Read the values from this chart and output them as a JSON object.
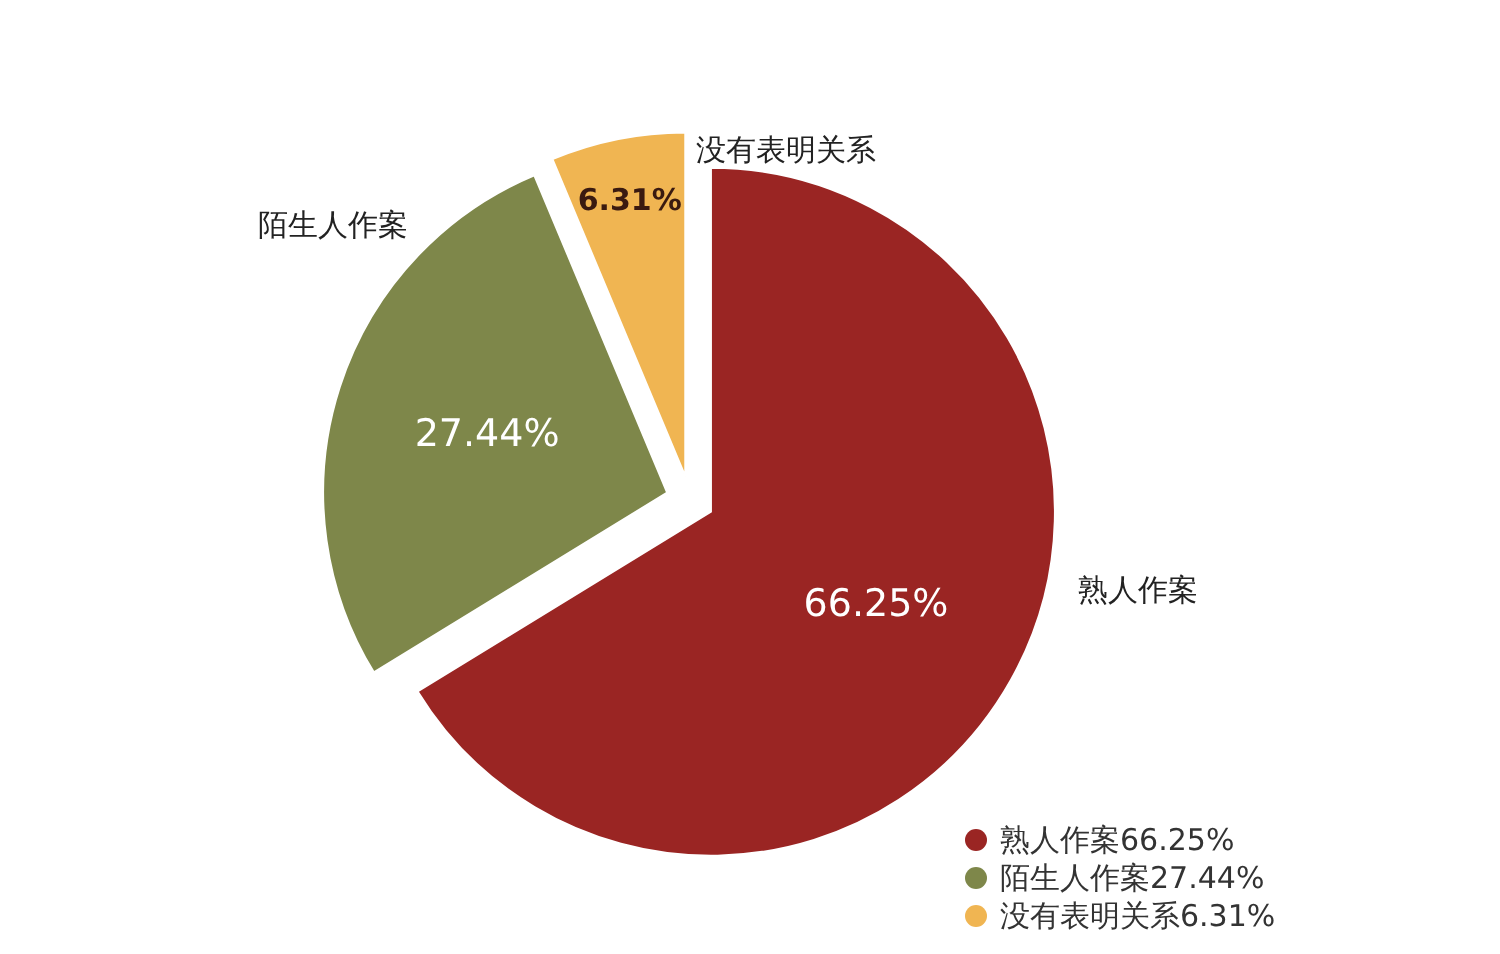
{
  "chart_data": {
    "type": "pie",
    "categories": [
      "熟人作案",
      "陌生人作案",
      "没有表明关系"
    ],
    "values": [
      66.25,
      27.44,
      6.31
    ],
    "value_labels": [
      "66.25%",
      "27.44%",
      "6.31%"
    ],
    "colors": [
      "#9a2523",
      "#7e874a",
      "#f0b552"
    ],
    "legend": "bottom right"
  }
}
